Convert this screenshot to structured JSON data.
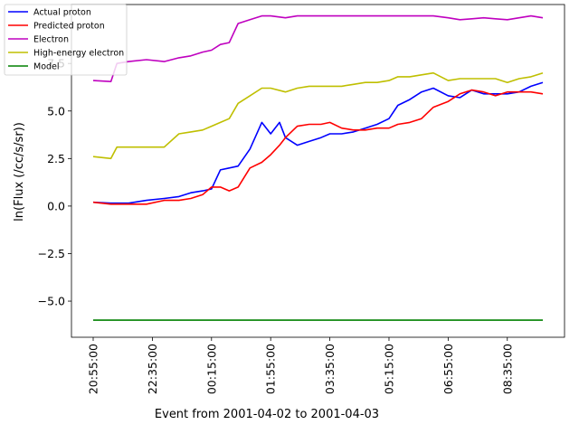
{
  "chart_data": {
    "type": "line",
    "title": "",
    "xlabel": "Event from 2001-04-02 to 2001-04-03",
    "ylabel": "ln(Flux (/cc/s/sr))",
    "x_unit": "time",
    "x_range": [
      "20:55:00",
      "09:35:00"
    ],
    "x_tick_labels": [
      "20:55:00",
      "22:35:00",
      "00:15:00",
      "01:55:00",
      "03:35:00",
      "05:15:00",
      "06:55:00",
      "08:35:00"
    ],
    "y_tick_labels": [
      "-5.0",
      "-2.5",
      "0.0",
      "2.5",
      "5.0",
      "7.5"
    ],
    "ylim": [
      -6.9,
      10.6
    ],
    "grid": false,
    "legend_position": "top-left",
    "series": [
      {
        "name": "Actual proton",
        "color": "#0000ff",
        "x": [
          "20:55:00",
          "21:25:00",
          "21:55:00",
          "22:25:00",
          "22:55:00",
          "23:20:00",
          "23:40:00",
          "00:00:00",
          "00:15:00",
          "00:30:00",
          "00:45:00",
          "01:00:00",
          "01:20:00",
          "01:40:00",
          "01:55:00",
          "02:10:00",
          "02:20:00",
          "02:40:00",
          "03:00:00",
          "03:20:00",
          "03:35:00",
          "03:55:00",
          "04:15:00",
          "04:35:00",
          "04:55:00",
          "05:15:00",
          "05:30:00",
          "05:50:00",
          "06:10:00",
          "06:30:00",
          "06:55:00",
          "07:15:00",
          "07:35:00",
          "07:55:00",
          "08:15:00",
          "08:35:00",
          "08:55:00",
          "09:15:00",
          "09:35:00"
        ],
        "values": [
          0.2,
          0.15,
          0.15,
          0.3,
          0.4,
          0.5,
          0.7,
          0.8,
          0.9,
          1.9,
          2.0,
          2.1,
          3.0,
          4.4,
          3.8,
          4.4,
          3.6,
          3.2,
          3.4,
          3.6,
          3.8,
          3.8,
          3.9,
          4.1,
          4.3,
          4.6,
          5.3,
          5.6,
          6.0,
          6.2,
          5.8,
          5.7,
          6.1,
          5.9,
          5.9,
          5.9,
          6.0,
          6.3,
          6.5
        ]
      },
      {
        "name": "Predicted proton",
        "color": "#ff0000",
        "x": [
          "20:55:00",
          "21:25:00",
          "21:55:00",
          "22:25:00",
          "22:55:00",
          "23:20:00",
          "23:40:00",
          "00:00:00",
          "00:15:00",
          "00:30:00",
          "00:45:00",
          "01:00:00",
          "01:20:00",
          "01:40:00",
          "01:55:00",
          "02:10:00",
          "02:20:00",
          "02:40:00",
          "03:00:00",
          "03:20:00",
          "03:35:00",
          "03:55:00",
          "04:15:00",
          "04:35:00",
          "04:55:00",
          "05:15:00",
          "05:30:00",
          "05:50:00",
          "06:10:00",
          "06:30:00",
          "06:55:00",
          "07:15:00",
          "07:35:00",
          "07:55:00",
          "08:15:00",
          "08:35:00",
          "08:55:00",
          "09:15:00",
          "09:35:00"
        ],
        "values": [
          0.2,
          0.1,
          0.1,
          0.1,
          0.3,
          0.3,
          0.4,
          0.6,
          1.0,
          1.0,
          0.8,
          1.0,
          2.0,
          2.3,
          2.7,
          3.2,
          3.6,
          4.2,
          4.3,
          4.3,
          4.4,
          4.1,
          4.0,
          4.0,
          4.1,
          4.1,
          4.3,
          4.4,
          4.6,
          5.2,
          5.5,
          5.9,
          6.1,
          6.0,
          5.8,
          6.0,
          6.0,
          6.0,
          5.9
        ]
      },
      {
        "name": "Electron",
        "color": "#bf00bf",
        "x": [
          "20:55:00",
          "21:25:00",
          "21:35:00",
          "21:55:00",
          "22:25:00",
          "22:55:00",
          "23:20:00",
          "23:40:00",
          "00:00:00",
          "00:15:00",
          "00:30:00",
          "00:45:00",
          "01:00:00",
          "01:20:00",
          "01:40:00",
          "01:55:00",
          "02:20:00",
          "02:40:00",
          "03:00:00",
          "03:20:00",
          "03:35:00",
          "03:55:00",
          "04:15:00",
          "04:35:00",
          "04:55:00",
          "05:15:00",
          "05:30:00",
          "05:50:00",
          "06:10:00",
          "06:30:00",
          "06:55:00",
          "07:15:00",
          "07:35:00",
          "07:55:00",
          "08:15:00",
          "08:35:00",
          "08:55:00",
          "09:15:00",
          "09:35:00"
        ],
        "values": [
          6.6,
          6.55,
          7.5,
          7.6,
          7.7,
          7.6,
          7.8,
          7.9,
          8.1,
          8.2,
          8.5,
          8.6,
          9.6,
          9.8,
          10.0,
          10.0,
          9.9,
          10.0,
          10.0,
          10.0,
          10.0,
          10.0,
          10.0,
          10.0,
          10.0,
          10.0,
          10.0,
          10.0,
          10.0,
          10.0,
          9.9,
          9.8,
          9.85,
          9.9,
          9.85,
          9.8,
          9.9,
          10.0,
          9.9
        ]
      },
      {
        "name": "High-energy electron",
        "color": "#bfbf00",
        "x": [
          "20:55:00",
          "21:25:00",
          "21:35:00",
          "21:55:00",
          "22:25:00",
          "22:55:00",
          "23:20:00",
          "23:40:00",
          "00:00:00",
          "00:15:00",
          "00:30:00",
          "00:45:00",
          "01:00:00",
          "01:20:00",
          "01:40:00",
          "01:55:00",
          "02:20:00",
          "02:40:00",
          "03:00:00",
          "03:20:00",
          "03:35:00",
          "03:55:00",
          "04:15:00",
          "04:35:00",
          "04:55:00",
          "05:15:00",
          "05:30:00",
          "05:50:00",
          "06:10:00",
          "06:30:00",
          "06:55:00",
          "07:15:00",
          "07:35:00",
          "07:55:00",
          "08:15:00",
          "08:35:00",
          "08:55:00",
          "09:15:00",
          "09:35:00"
        ],
        "values": [
          2.6,
          2.5,
          3.1,
          3.1,
          3.1,
          3.1,
          3.8,
          3.9,
          4.0,
          4.2,
          4.4,
          4.6,
          5.4,
          5.8,
          6.2,
          6.2,
          6.0,
          6.2,
          6.3,
          6.3,
          6.3,
          6.3,
          6.4,
          6.5,
          6.5,
          6.6,
          6.8,
          6.8,
          6.9,
          7.0,
          6.6,
          6.7,
          6.7,
          6.7,
          6.7,
          6.5,
          6.7,
          6.8,
          7.0
        ]
      },
      {
        "name": "Model",
        "color": "#008000",
        "x": [
          "20:55:00",
          "09:35:00"
        ],
        "values": [
          -6.0,
          -6.0
        ]
      }
    ]
  }
}
